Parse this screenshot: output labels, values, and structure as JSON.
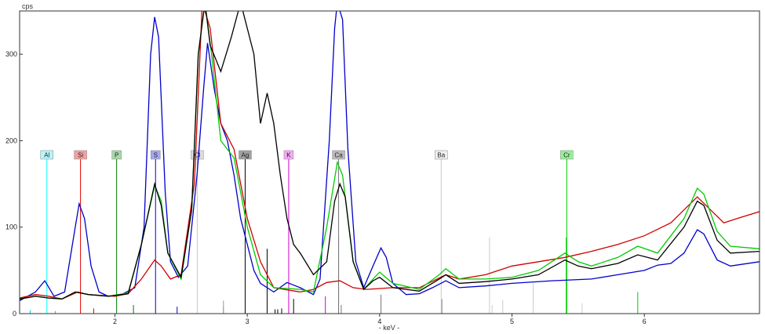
{
  "chart_data": {
    "type": "line",
    "ylabel": "cps",
    "xlabel": "- keV -",
    "xlim": [
      1.28,
      6.87
    ],
    "ylim": [
      0,
      350
    ],
    "x_ticks": [
      "2",
      "3",
      "4",
      "5",
      "6"
    ],
    "y_ticks": [
      "100",
      "200",
      "300"
    ],
    "y_zero_label": "0",
    "series": [
      {
        "color": "#0000cc",
        "points": [
          [
            1.28,
            15
          ],
          [
            1.4,
            25
          ],
          [
            1.47,
            38
          ],
          [
            1.54,
            20
          ],
          [
            1.62,
            25
          ],
          [
            1.7,
            100
          ],
          [
            1.73,
            127
          ],
          [
            1.77,
            110
          ],
          [
            1.82,
            55
          ],
          [
            1.88,
            25
          ],
          [
            1.95,
            20
          ],
          [
            2.05,
            22
          ],
          [
            2.15,
            30
          ],
          [
            2.22,
            100
          ],
          [
            2.27,
            300
          ],
          [
            2.3,
            343
          ],
          [
            2.33,
            320
          ],
          [
            2.38,
            140
          ],
          [
            2.42,
            60
          ],
          [
            2.48,
            42
          ],
          [
            2.55,
            55
          ],
          [
            2.62,
            160
          ],
          [
            2.67,
            260
          ],
          [
            2.7,
            313
          ],
          [
            2.75,
            260
          ],
          [
            2.8,
            220
          ],
          [
            2.85,
            200
          ],
          [
            2.9,
            160
          ],
          [
            2.95,
            110
          ],
          [
            3.0,
            80
          ],
          [
            3.05,
            50
          ],
          [
            3.1,
            35
          ],
          [
            3.2,
            25
          ],
          [
            3.3,
            36
          ],
          [
            3.4,
            30
          ],
          [
            3.5,
            22
          ],
          [
            3.55,
            40
          ],
          [
            3.62,
            200
          ],
          [
            3.66,
            330
          ],
          [
            3.68,
            360
          ],
          [
            3.72,
            340
          ],
          [
            3.76,
            190
          ],
          [
            3.82,
            60
          ],
          [
            3.88,
            30
          ],
          [
            3.95,
            55
          ],
          [
            4.01,
            76
          ],
          [
            4.05,
            65
          ],
          [
            4.1,
            35
          ],
          [
            4.2,
            22
          ],
          [
            4.3,
            23
          ],
          [
            4.4,
            30
          ],
          [
            4.5,
            38
          ],
          [
            4.6,
            30
          ],
          [
            4.8,
            32
          ],
          [
            5.0,
            35
          ],
          [
            5.3,
            38
          ],
          [
            5.6,
            40
          ],
          [
            5.8,
            45
          ],
          [
            6.0,
            50
          ],
          [
            6.1,
            56
          ],
          [
            6.2,
            58
          ],
          [
            6.3,
            70
          ],
          [
            6.4,
            97
          ],
          [
            6.45,
            92
          ],
          [
            6.55,
            62
          ],
          [
            6.65,
            55
          ],
          [
            6.87,
            60
          ]
        ]
      },
      {
        "color": "#d00000",
        "points": [
          [
            1.28,
            18
          ],
          [
            1.4,
            22
          ],
          [
            1.5,
            20
          ],
          [
            1.6,
            17
          ],
          [
            1.72,
            25
          ],
          [
            1.8,
            22
          ],
          [
            2.0,
            20
          ],
          [
            2.1,
            23
          ],
          [
            2.2,
            40
          ],
          [
            2.3,
            62
          ],
          [
            2.35,
            55
          ],
          [
            2.42,
            40
          ],
          [
            2.5,
            45
          ],
          [
            2.6,
            150
          ],
          [
            2.66,
            360
          ],
          [
            2.72,
            330
          ],
          [
            2.8,
            220
          ],
          [
            2.9,
            190
          ],
          [
            3.0,
            110
          ],
          [
            3.1,
            60
          ],
          [
            3.2,
            30
          ],
          [
            3.4,
            25
          ],
          [
            3.5,
            28
          ],
          [
            3.6,
            36
          ],
          [
            3.7,
            38
          ],
          [
            3.8,
            30
          ],
          [
            3.9,
            28
          ],
          [
            4.1,
            30
          ],
          [
            4.3,
            30
          ],
          [
            4.5,
            45
          ],
          [
            4.6,
            40
          ],
          [
            4.8,
            45
          ],
          [
            5.0,
            55
          ],
          [
            5.2,
            60
          ],
          [
            5.4,
            65
          ],
          [
            5.6,
            72
          ],
          [
            5.8,
            80
          ],
          [
            6.0,
            90
          ],
          [
            6.2,
            105
          ],
          [
            6.3,
            120
          ],
          [
            6.4,
            135
          ],
          [
            6.5,
            120
          ],
          [
            6.6,
            105
          ],
          [
            6.7,
            110
          ],
          [
            6.87,
            118
          ]
        ]
      },
      {
        "color": "#00cc00",
        "points": [
          [
            1.28,
            17
          ],
          [
            1.4,
            20
          ],
          [
            1.5,
            18
          ],
          [
            1.6,
            17
          ],
          [
            1.7,
            25
          ],
          [
            1.8,
            22
          ],
          [
            1.95,
            20
          ],
          [
            2.1,
            24
          ],
          [
            2.2,
            80
          ],
          [
            2.3,
            148
          ],
          [
            2.35,
            130
          ],
          [
            2.4,
            70
          ],
          [
            2.5,
            40
          ],
          [
            2.58,
            120
          ],
          [
            2.63,
            300
          ],
          [
            2.68,
            360
          ],
          [
            2.73,
            300
          ],
          [
            2.8,
            200
          ],
          [
            2.9,
            180
          ],
          [
            3.0,
            100
          ],
          [
            3.1,
            45
          ],
          [
            3.2,
            30
          ],
          [
            3.4,
            28
          ],
          [
            3.5,
            25
          ],
          [
            3.6,
            100
          ],
          [
            3.68,
            175
          ],
          [
            3.72,
            160
          ],
          [
            3.8,
            60
          ],
          [
            3.88,
            28
          ],
          [
            3.95,
            40
          ],
          [
            4.0,
            48
          ],
          [
            4.1,
            35
          ],
          [
            4.3,
            28
          ],
          [
            4.45,
            45
          ],
          [
            4.5,
            52
          ],
          [
            4.6,
            40
          ],
          [
            4.8,
            40
          ],
          [
            5.0,
            42
          ],
          [
            5.2,
            50
          ],
          [
            5.4,
            70
          ],
          [
            5.5,
            60
          ],
          [
            5.6,
            55
          ],
          [
            5.8,
            65
          ],
          [
            5.95,
            78
          ],
          [
            6.1,
            70
          ],
          [
            6.3,
            110
          ],
          [
            6.4,
            145
          ],
          [
            6.45,
            138
          ],
          [
            6.55,
            95
          ],
          [
            6.65,
            78
          ],
          [
            6.87,
            75
          ]
        ]
      },
      {
        "color": "#000000",
        "points": [
          [
            1.28,
            17
          ],
          [
            1.4,
            20
          ],
          [
            1.5,
            18
          ],
          [
            1.6,
            17
          ],
          [
            1.7,
            25
          ],
          [
            1.8,
            22
          ],
          [
            1.95,
            20
          ],
          [
            2.1,
            23
          ],
          [
            2.2,
            80
          ],
          [
            2.3,
            150
          ],
          [
            2.35,
            125
          ],
          [
            2.4,
            70
          ],
          [
            2.5,
            42
          ],
          [
            2.58,
            120
          ],
          [
            2.63,
            300
          ],
          [
            2.68,
            360
          ],
          [
            2.72,
            310
          ],
          [
            2.8,
            280
          ],
          [
            2.88,
            320
          ],
          [
            2.95,
            360
          ],
          [
            3.05,
            300
          ],
          [
            3.1,
            220
          ],
          [
            3.15,
            255
          ],
          [
            3.2,
            220
          ],
          [
            3.25,
            160
          ],
          [
            3.3,
            110
          ],
          [
            3.35,
            80
          ],
          [
            3.4,
            70
          ],
          [
            3.5,
            45
          ],
          [
            3.6,
            60
          ],
          [
            3.66,
            130
          ],
          [
            3.7,
            150
          ],
          [
            3.74,
            135
          ],
          [
            3.8,
            60
          ],
          [
            3.88,
            28
          ],
          [
            3.95,
            38
          ],
          [
            4.0,
            42
          ],
          [
            4.1,
            30
          ],
          [
            4.3,
            26
          ],
          [
            4.45,
            40
          ],
          [
            4.5,
            45
          ],
          [
            4.6,
            35
          ],
          [
            4.8,
            37
          ],
          [
            5.0,
            40
          ],
          [
            5.2,
            45
          ],
          [
            5.4,
            62
          ],
          [
            5.5,
            55
          ],
          [
            5.6,
            52
          ],
          [
            5.8,
            58
          ],
          [
            5.95,
            68
          ],
          [
            6.1,
            62
          ],
          [
            6.3,
            100
          ],
          [
            6.4,
            130
          ],
          [
            6.45,
            125
          ],
          [
            6.55,
            85
          ],
          [
            6.65,
            70
          ],
          [
            6.87,
            72
          ]
        ]
      }
    ],
    "markers": [
      {
        "label": "Al",
        "x": 1.486,
        "color": "#00ffff",
        "box": "#b8f4f8",
        "height": 0
      },
      {
        "label": "Si",
        "x": 1.74,
        "color": "#e00000",
        "box": "#f4a0a0",
        "height": 0
      },
      {
        "label": "P",
        "x": 2.013,
        "color": "#007700",
        "box": "#a8d8a8",
        "height": 0
      },
      {
        "label": "S",
        "x": 2.307,
        "color": "#0000dd",
        "box": "#a8a8ee",
        "height": 0
      },
      {
        "label": "Cl",
        "x": 2.622,
        "color": "#c8c8c8",
        "box": "#dddddd",
        "height": 0
      },
      {
        "label": "Ag",
        "x": 2.984,
        "color": "#000000",
        "box": "#a0a0a0",
        "height": 0
      },
      {
        "label": "K",
        "x": 3.313,
        "color": "#cc00cc",
        "box": "#f4a8f4",
        "height": 0
      },
      {
        "label": "Ca",
        "x": 3.69,
        "color": "#777777",
        "box": "#bbbbbb",
        "height": 0
      },
      {
        "label": "Ba",
        "x": 4.465,
        "color": "#c8c8c8",
        "box": "#eeeeee",
        "height": 0
      },
      {
        "label": "Cr",
        "x": 5.414,
        "color": "#00cc00",
        "box": "#99ee99",
        "height": 0
      }
    ],
    "minor_lines": [
      {
        "x": 1.36,
        "h": 4,
        "color": "#00cccc"
      },
      {
        "x": 1.55,
        "h": 3,
        "color": "#00cccc"
      },
      {
        "x": 1.84,
        "h": 6,
        "color": "#e00000"
      },
      {
        "x": 2.14,
        "h": 10,
        "color": "#007700"
      },
      {
        "x": 2.47,
        "h": 8,
        "color": "#0000dd"
      },
      {
        "x": 2.82,
        "h": 15,
        "color": "#999999"
      },
      {
        "x": 2.82,
        "h": 8,
        "color": "#999999"
      },
      {
        "x": 3.15,
        "h": 75,
        "color": "#000000"
      },
      {
        "x": 3.21,
        "h": 5,
        "color": "#000000"
      },
      {
        "x": 3.23,
        "h": 5,
        "color": "#000000"
      },
      {
        "x": 3.26,
        "h": 6,
        "color": "#000000"
      },
      {
        "x": 3.35,
        "h": 17,
        "color": "#000000"
      },
      {
        "x": 3.59,
        "h": 20,
        "color": "#cc00cc"
      },
      {
        "x": 3.69,
        "h": 88,
        "color": "#777777"
      },
      {
        "x": 3.71,
        "h": 10,
        "color": "#777777"
      },
      {
        "x": 4.01,
        "h": 22,
        "color": "#777777"
      },
      {
        "x": 4.47,
        "h": 17,
        "color": "#777777"
      },
      {
        "x": 4.83,
        "h": 88,
        "color": "#cccccc"
      },
      {
        "x": 4.93,
        "h": 16,
        "color": "#cccccc"
      },
      {
        "x": 4.85,
        "h": 10,
        "color": "#cccccc"
      },
      {
        "x": 5.16,
        "h": 35,
        "color": "#cccccc"
      },
      {
        "x": 5.53,
        "h": 12,
        "color": "#cccccc"
      },
      {
        "x": 5.95,
        "h": 25,
        "color": "#00cc00"
      },
      {
        "x": 5.41,
        "h": 88,
        "color": "#00cc00"
      }
    ]
  }
}
